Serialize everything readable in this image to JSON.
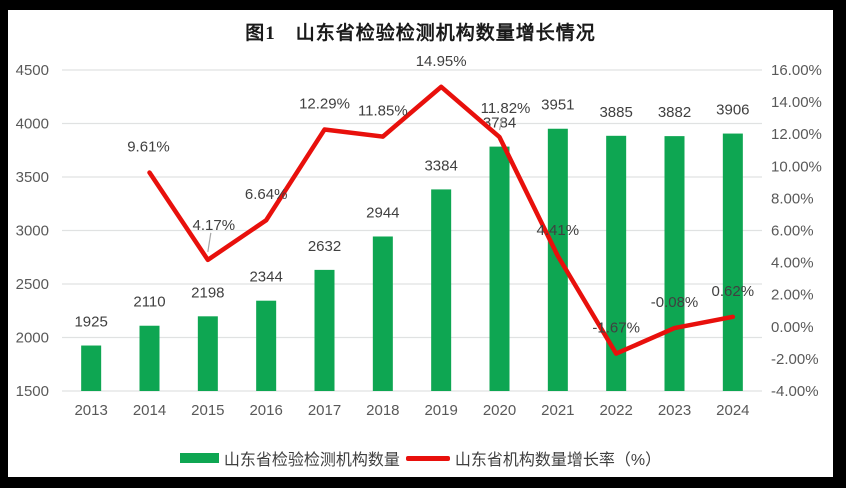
{
  "frame": {
    "background": "#000000",
    "card_background": "#ffffff"
  },
  "chart_data": {
    "type": "bar+line",
    "title": "图1　山东省检验检测机构数量增长情况",
    "categories": [
      "2013",
      "2014",
      "2015",
      "2016",
      "2017",
      "2018",
      "2019",
      "2020",
      "2021",
      "2022",
      "2023",
      "2024"
    ],
    "series": [
      {
        "name": "山东省检验检测机构数量",
        "type": "bar",
        "color": "#0EA652",
        "values": [
          1925,
          2110,
          2198,
          2344,
          2632,
          2944,
          3384,
          3784,
          3951,
          3885,
          3882,
          3906
        ],
        "labels": [
          "1925",
          "2110",
          "2198",
          "2344",
          "2632",
          "2944",
          "3384",
          "3784",
          "3951",
          "3885",
          "3882",
          "3906"
        ]
      },
      {
        "name": "山东省机构数量增长率（%）",
        "type": "line",
        "color": "#E8100C",
        "values": [
          null,
          9.61,
          4.17,
          6.64,
          12.29,
          11.85,
          14.95,
          11.82,
          4.41,
          -1.67,
          -0.08,
          0.62
        ],
        "labels": [
          null,
          "9.61%",
          "4.17%",
          "6.64%",
          "12.29%",
          "11.85%",
          "14.95%",
          "11.82%",
          "4.41%",
          "-1.67%",
          "-0.08%",
          "0.62%"
        ]
      }
    ],
    "left_axis": {
      "min": 1500,
      "max": 4500,
      "step": 500,
      "tick_labels": [
        "4500",
        "4000",
        "3500",
        "3000",
        "2500",
        "2000",
        "1500"
      ]
    },
    "right_axis": {
      "min": -4,
      "max": 16,
      "step": 2,
      "tick_labels": [
        "16.00%",
        "14.00%",
        "12.00%",
        "10.00%",
        "8.00%",
        "6.00%",
        "4.00%",
        "2.00%",
        "0.00%",
        "-2.00%",
        "-4.00%"
      ]
    },
    "grid": true,
    "legend_position": "bottom",
    "style": {
      "gridline_color": "#E0E2E2",
      "axis_text_color": "#595959",
      "data_label_color": "#404040",
      "leader_line_color": "#A6A6A6"
    }
  }
}
